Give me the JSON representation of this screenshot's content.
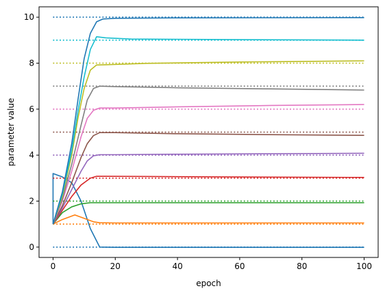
{
  "chart_data": {
    "type": "line",
    "title": "",
    "xlabel": "epoch",
    "ylabel": "parameter value",
    "xlim": [
      -4.5,
      104.5
    ],
    "ylim": [
      -0.45,
      10.45
    ],
    "xticks": [
      0,
      20,
      40,
      60,
      80,
      100
    ],
    "yticks": [
      0,
      2,
      4,
      6,
      8,
      10
    ],
    "grid": false,
    "legend": "none",
    "series": [
      {
        "color": "#1f77b4",
        "style": "solid",
        "x": [
          0,
          0,
          3,
          6,
          9,
          12,
          15,
          20,
          30,
          50,
          70,
          100
        ],
        "y": [
          1.0,
          3.2,
          3.05,
          2.8,
          2.0,
          0.8,
          0.0,
          -0.01,
          -0.01,
          -0.01,
          -0.01,
          -0.01
        ]
      },
      {
        "color": "#1f77b4",
        "style": "dotted",
        "x": [
          0,
          100
        ],
        "y": [
          0,
          0
        ]
      },
      {
        "color": "#ff7f0e",
        "style": "solid",
        "x": [
          0,
          3,
          7,
          10,
          13,
          15,
          20,
          40,
          70,
          100
        ],
        "y": [
          1.0,
          1.2,
          1.4,
          1.25,
          1.1,
          1.06,
          1.05,
          1.05,
          1.05,
          1.05
        ]
      },
      {
        "color": "#ff7f0e",
        "style": "dotted",
        "x": [
          0,
          100
        ],
        "y": [
          1,
          1
        ]
      },
      {
        "color": "#2ca02c",
        "style": "solid",
        "x": [
          0,
          3,
          6,
          9,
          12,
          15,
          20,
          40,
          70,
          100
        ],
        "y": [
          1.0,
          1.5,
          1.75,
          1.88,
          1.93,
          1.93,
          1.93,
          1.93,
          1.93,
          1.93
        ]
      },
      {
        "color": "#2ca02c",
        "style": "dotted",
        "x": [
          0,
          100
        ],
        "y": [
          2,
          2
        ]
      },
      {
        "color": "#d62728",
        "style": "solid",
        "x": [
          0,
          3,
          6,
          9,
          12,
          14,
          17,
          30,
          60,
          100
        ],
        "y": [
          1.0,
          1.6,
          2.2,
          2.7,
          3.0,
          3.08,
          3.08,
          3.07,
          3.05,
          3.03
        ]
      },
      {
        "color": "#d62728",
        "style": "dotted",
        "x": [
          0,
          100
        ],
        "y": [
          3,
          3
        ]
      },
      {
        "color": "#9467bd",
        "style": "solid",
        "x": [
          0,
          3,
          6,
          9,
          11,
          13,
          15,
          20,
          40,
          70,
          100
        ],
        "y": [
          1.0,
          1.7,
          2.5,
          3.3,
          3.75,
          3.97,
          4.02,
          4.02,
          4.04,
          4.06,
          4.08
        ]
      },
      {
        "color": "#9467bd",
        "style": "dotted",
        "x": [
          0,
          100
        ],
        "y": [
          4,
          4
        ]
      },
      {
        "color": "#8c564b",
        "style": "solid",
        "x": [
          0,
          3,
          6,
          9,
          11,
          13,
          15,
          20,
          40,
          70,
          100
        ],
        "y": [
          1.0,
          1.8,
          2.8,
          3.9,
          4.5,
          4.85,
          4.98,
          4.98,
          4.93,
          4.89,
          4.86
        ]
      },
      {
        "color": "#8c564b",
        "style": "dotted",
        "x": [
          0,
          100
        ],
        "y": [
          5,
          5
        ]
      },
      {
        "color": "#e377c2",
        "style": "solid",
        "x": [
          0,
          3,
          6,
          9,
          11,
          13,
          15,
          20,
          40,
          70,
          100
        ],
        "y": [
          1.0,
          2.0,
          3.3,
          4.8,
          5.6,
          5.95,
          6.05,
          6.05,
          6.1,
          6.16,
          6.2
        ]
      },
      {
        "color": "#e377c2",
        "style": "dotted",
        "x": [
          0,
          100
        ],
        "y": [
          6,
          6
        ]
      },
      {
        "color": "#7f7f7f",
        "style": "solid",
        "x": [
          0,
          3,
          6,
          9,
          11,
          13,
          15,
          20,
          40,
          70,
          100
        ],
        "y": [
          1.0,
          2.1,
          3.6,
          5.3,
          6.4,
          6.9,
          7.0,
          6.98,
          6.93,
          6.88,
          6.83
        ]
      },
      {
        "color": "#7f7f7f",
        "style": "dotted",
        "x": [
          0,
          100
        ],
        "y": [
          7,
          7
        ]
      },
      {
        "color": "#bcbd22",
        "style": "solid",
        "x": [
          0,
          3,
          6,
          8,
          10,
          12,
          14,
          17,
          30,
          60,
          100
        ],
        "y": [
          1.0,
          2.2,
          4.0,
          5.6,
          6.9,
          7.7,
          7.92,
          7.93,
          7.99,
          8.05,
          8.1
        ]
      },
      {
        "color": "#bcbd22",
        "style": "dotted",
        "x": [
          0,
          100
        ],
        "y": [
          8,
          8
        ]
      },
      {
        "color": "#17becf",
        "style": "solid",
        "x": [
          0,
          3,
          6,
          8,
          10,
          12,
          14,
          17,
          25,
          50,
          100
        ],
        "y": [
          1.0,
          2.3,
          4.2,
          5.9,
          7.4,
          8.6,
          9.15,
          9.1,
          9.05,
          9.03,
          9.0
        ]
      },
      {
        "color": "#17becf",
        "style": "dotted",
        "x": [
          0,
          100
        ],
        "y": [
          9,
          9
        ]
      },
      {
        "color": "#1f77b4",
        "style": "solid",
        "x": [
          0,
          3,
          6,
          8,
          10,
          12,
          14,
          16,
          20,
          40,
          100
        ],
        "y": [
          1.0,
          2.4,
          4.5,
          6.4,
          8.2,
          9.3,
          9.8,
          9.92,
          9.95,
          9.97,
          9.98
        ]
      },
      {
        "color": "#1f77b4",
        "style": "dotted",
        "x": [
          0,
          100
        ],
        "y": [
          10,
          10
        ]
      }
    ]
  }
}
